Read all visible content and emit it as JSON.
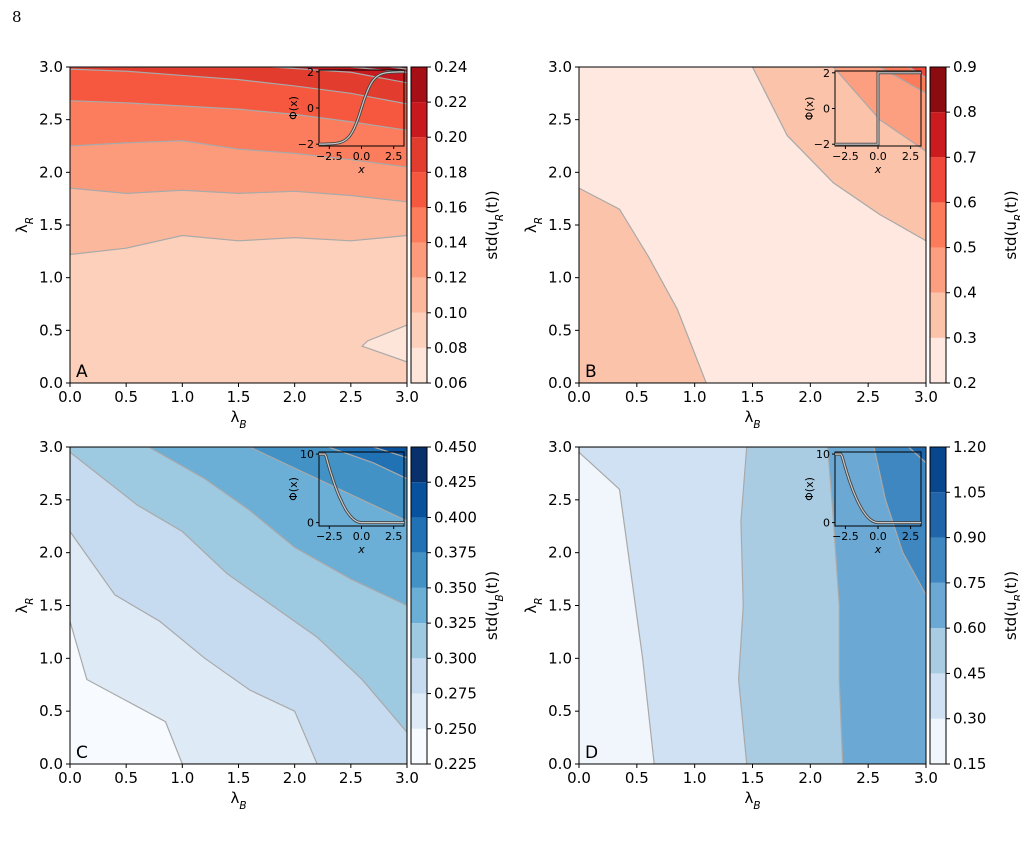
{
  "page": {
    "number": "8"
  },
  "chart_data": [
    {
      "panel_label": "A",
      "type": "heatmap",
      "xlabel": "λB",
      "ylabel": "λR",
      "xlim": [
        0,
        3
      ],
      "ylim": [
        0,
        3
      ],
      "xticks": [
        "0.0",
        "0.5",
        "1.0",
        "1.5",
        "2.0",
        "2.5",
        "3.0"
      ],
      "yticks": [
        "0.0",
        "0.5",
        "1.0",
        "1.5",
        "2.0",
        "2.5",
        "3.0"
      ],
      "colorbar": {
        "label": "std(uR(t))",
        "ticks": [
          "0.06",
          "0.08",
          "0.10",
          "0.12",
          "0.14",
          "0.16",
          "0.18",
          "0.20",
          "0.22",
          "0.24"
        ],
        "colors": [
          "#fee5d9",
          "#fdd0bb",
          "#fcb89c",
          "#fc9b7c",
          "#fb7d5e",
          "#f5583f",
          "#e13c2e",
          "#c8191e",
          "#a50f15"
        ]
      },
      "levels": [
        {
          "range": [
            0.06,
            0.08
          ],
          "x": [
            2.6,
            3.0,
            3.0,
            2.65
          ],
          "y": [
            0.35,
            0.2,
            0.55,
            0.4
          ]
        },
        {
          "range": [
            0.08,
            0.1
          ],
          "x": [
            0,
            0.5,
            1.0,
            1.5,
            2.0,
            2.5,
            3.0
          ],
          "y": [
            1.22,
            1.28,
            1.4,
            1.35,
            1.38,
            1.35,
            1.4
          ]
        },
        {
          "range": [
            0.1,
            0.12
          ],
          "x": [
            0,
            0.5,
            1.0,
            1.5,
            2.0,
            2.5,
            3.0
          ],
          "y": [
            1.85,
            1.8,
            1.83,
            1.8,
            1.82,
            1.78,
            1.72
          ]
        },
        {
          "range": [
            0.12,
            0.14
          ],
          "x": [
            0,
            0.5,
            1.0,
            1.5,
            2.0,
            2.5,
            3.0
          ],
          "y": [
            2.25,
            2.28,
            2.3,
            2.22,
            2.18,
            2.12,
            2.05
          ]
        },
        {
          "range": [
            0.14,
            0.16
          ],
          "x": [
            0,
            0.5,
            1.0,
            1.5,
            2.0,
            2.5,
            3.0
          ],
          "y": [
            2.68,
            2.66,
            2.63,
            2.6,
            2.55,
            2.48,
            2.4
          ]
        },
        {
          "range": [
            0.16,
            0.18
          ],
          "x": [
            0,
            0.5,
            1.0,
            1.5,
            2.0,
            2.5,
            3.0
          ],
          "y": [
            2.98,
            2.96,
            2.92,
            2.88,
            2.82,
            2.75,
            2.65
          ]
        },
        {
          "range": [
            0.18,
            0.2
          ],
          "x": [
            1.8,
            2.5,
            3.0
          ],
          "y": [
            3.0,
            2.95,
            2.85
          ]
        },
        {
          "range": [
            0.2,
            0.22
          ],
          "x": [
            2.5,
            3.0
          ],
          "y": [
            3.0,
            2.95
          ]
        },
        {
          "range": [
            0.22,
            0.24
          ],
          "x": [
            2.85,
            3.0
          ],
          "y": [
            3.0,
            2.98
          ]
        }
      ],
      "inset": {
        "xlabel": "x",
        "ylabel": "Φ(x)",
        "xticks": [
          "−2.5",
          "0.0",
          "2.5"
        ],
        "yticks": [
          "−2",
          "0",
          "2"
        ],
        "shape": "sigmoid"
      }
    },
    {
      "panel_label": "B",
      "type": "heatmap",
      "xlabel": "λB",
      "ylabel": "λR",
      "xlim": [
        0,
        3
      ],
      "ylim": [
        0,
        3
      ],
      "xticks": [
        "0.0",
        "0.5",
        "1.0",
        "1.5",
        "2.0",
        "2.5",
        "3.0"
      ],
      "yticks": [
        "0.0",
        "0.5",
        "1.0",
        "1.5",
        "2.0",
        "2.5",
        "3.0"
      ],
      "colorbar": {
        "label": "std(uR(t))",
        "ticks": [
          "0.2",
          "0.3",
          "0.4",
          "0.5",
          "0.6",
          "0.7",
          "0.8",
          "0.9"
        ],
        "colors": [
          "#fee8df",
          "#fcc3ab",
          "#fc9f81",
          "#fb7b5b",
          "#f0483a",
          "#cb1b1e",
          "#8b0b11"
        ]
      },
      "levels": [
        {
          "range": [
            0.3,
            0.4
          ],
          "x": [
            0,
            0.35,
            0.6,
            0.85,
            1.1,
            0,
            0
          ],
          "y": [
            1.85,
            1.65,
            1.2,
            0.7,
            0,
            0,
            1.85
          ]
        },
        {
          "range": [
            0.3,
            0.4
          ],
          "x": [
            1.5,
            1.8,
            2.2,
            2.6,
            3.0
          ],
          "y": [
            3.0,
            2.35,
            1.9,
            1.6,
            1.35
          ]
        },
        {
          "range": [
            0.4,
            0.5
          ],
          "x": [
            2.2,
            2.6,
            3.0
          ],
          "y": [
            3.0,
            2.5,
            2.2
          ]
        },
        {
          "range": [
            0.5,
            0.6
          ],
          "x": [
            2.6,
            3.0
          ],
          "y": [
            3.0,
            2.75
          ]
        },
        {
          "range": [
            0.6,
            0.7
          ],
          "x": [
            2.85,
            3.0
          ],
          "y": [
            3.0,
            2.9
          ]
        }
      ],
      "inset": {
        "xlabel": "x",
        "ylabel": "Φ(x)",
        "xticks": [
          "−2.5",
          "0.0",
          "2.5"
        ],
        "yticks": [
          "−2",
          "0",
          "2"
        ],
        "shape": "step"
      }
    },
    {
      "panel_label": "C",
      "type": "heatmap",
      "xlabel": "λB",
      "ylabel": "λR",
      "xlim": [
        0,
        3
      ],
      "ylim": [
        0,
        3
      ],
      "xticks": [
        "0.0",
        "0.5",
        "1.0",
        "1.5",
        "2.0",
        "2.5",
        "3.0"
      ],
      "yticks": [
        "0.0",
        "0.5",
        "1.0",
        "1.5",
        "2.0",
        "2.5",
        "3.0"
      ],
      "colorbar": {
        "label": "std(uB(t))",
        "ticks": [
          "0.225",
          "0.250",
          "0.275",
          "0.300",
          "0.325",
          "0.350",
          "0.375",
          "0.400",
          "0.425",
          "0.450"
        ],
        "colors": [
          "#f7fbff",
          "#deebf7",
          "#c6dbef",
          "#9ecae1",
          "#6baed6",
          "#4292c6",
          "#2171b5",
          "#08519c",
          "#08306b"
        ]
      },
      "levels": [
        {
          "range": [
            0.25,
            0.275
          ],
          "x": [
            0,
            0.15,
            0.5,
            0.85,
            1.0
          ],
          "y": [
            1.35,
            0.8,
            0.6,
            0.4,
            0
          ]
        },
        {
          "range": [
            0.275,
            0.3
          ],
          "x": [
            0,
            0.4,
            0.8,
            1.2,
            1.6,
            2.0,
            2.2
          ],
          "y": [
            2.2,
            1.6,
            1.35,
            1.0,
            0.7,
            0.5,
            0
          ]
        },
        {
          "range": [
            0.3,
            0.325
          ],
          "x": [
            0,
            0.6,
            1.0,
            1.4,
            1.8,
            2.2,
            2.6,
            3.0
          ],
          "y": [
            2.95,
            2.45,
            2.2,
            1.8,
            1.5,
            1.2,
            0.8,
            0.3
          ]
        },
        {
          "range": [
            0.325,
            0.35
          ],
          "x": [
            0.7,
            1.2,
            1.6,
            2.0,
            2.5,
            3.0
          ],
          "y": [
            3.0,
            2.7,
            2.4,
            2.05,
            1.75,
            1.5
          ]
        },
        {
          "range": [
            0.35,
            0.375
          ],
          "x": [
            1.6,
            2.0,
            2.5,
            3.0
          ],
          "y": [
            3.0,
            2.8,
            2.55,
            2.3
          ]
        },
        {
          "range": [
            0.375,
            0.4
          ],
          "x": [
            2.3,
            2.7,
            3.0
          ],
          "y": [
            3.0,
            2.85,
            2.7
          ]
        },
        {
          "range": [
            0.4,
            0.425
          ],
          "x": [
            2.7,
            3.0
          ],
          "y": [
            3.0,
            2.9
          ]
        }
      ],
      "inset": {
        "xlabel": "x",
        "ylabel": "Φ(x)",
        "xticks": [
          "−2.5",
          "0.0",
          "2.5"
        ],
        "yticks": [
          "0",
          "10"
        ],
        "shape": "decay"
      }
    },
    {
      "panel_label": "D",
      "type": "heatmap",
      "xlabel": "λB",
      "ylabel": "λR",
      "xlim": [
        0,
        3
      ],
      "ylim": [
        0,
        3
      ],
      "xticks": [
        "0.0",
        "0.5",
        "1.0",
        "1.5",
        "2.0",
        "2.5",
        "3.0"
      ],
      "yticks": [
        "0.0",
        "0.5",
        "1.0",
        "1.5",
        "2.0",
        "2.5",
        "3.0"
      ],
      "colorbar": {
        "label": "std(uB(t))",
        "ticks": [
          "0.15",
          "0.30",
          "0.45",
          "0.60",
          "0.75",
          "0.90",
          "1.05",
          "1.20"
        ],
        "colors": [
          "#f0f6fc",
          "#cfe1f2",
          "#a9cce3",
          "#6ba9d4",
          "#3f87c0",
          "#2064aa",
          "#08478d"
        ]
      },
      "levels": [
        {
          "range": [
            0.3,
            0.45
          ],
          "x": [
            0,
            0.35,
            0.45,
            0.55,
            0.65
          ],
          "y": [
            2.95,
            2.6,
            1.8,
            1.0,
            0
          ]
        },
        {
          "range": [
            0.45,
            0.6
          ],
          "x": [
            1.45,
            1.4,
            1.42,
            1.38,
            1.45
          ],
          "y": [
            3.0,
            2.3,
            1.5,
            0.8,
            0
          ]
        },
        {
          "range": [
            0.6,
            0.75
          ],
          "x": [
            2.15,
            2.2,
            2.25,
            2.25,
            2.28
          ],
          "y": [
            3.0,
            2.3,
            1.5,
            0.8,
            0
          ]
        },
        {
          "range": [
            0.75,
            0.9
          ],
          "x": [
            2.55,
            2.65,
            2.8,
            3.0
          ],
          "y": [
            3.0,
            2.5,
            2.0,
            1.6
          ]
        },
        {
          "range": [
            0.9,
            1.05
          ],
          "x": [
            2.85,
            3.0
          ],
          "y": [
            3.0,
            2.85
          ]
        }
      ],
      "inset": {
        "xlabel": "x",
        "ylabel": "Φ(x)",
        "xticks": [
          "−2.5",
          "0.0",
          "2.5"
        ],
        "yticks": [
          "0",
          "10"
        ],
        "shape": "decay"
      }
    }
  ]
}
